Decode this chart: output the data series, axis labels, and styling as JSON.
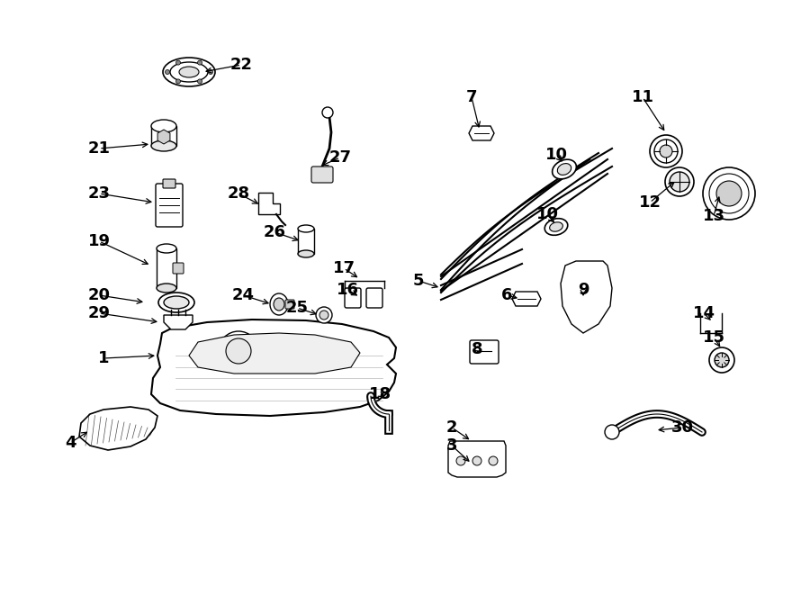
{
  "bg_color": "#ffffff",
  "line_color": "#000000",
  "labels": [
    [
      "1",
      115,
      398
    ],
    [
      "2",
      502,
      495
    ],
    [
      "3",
      502,
      515
    ],
    [
      "4",
      88,
      498
    ],
    [
      "5",
      468,
      310
    ],
    [
      "6",
      576,
      330
    ],
    [
      "7",
      524,
      105
    ],
    [
      "8",
      537,
      385
    ],
    [
      "9",
      651,
      330
    ],
    [
      "10",
      621,
      178
    ],
    [
      "10",
      612,
      240
    ],
    [
      "11",
      714,
      105
    ],
    [
      "12",
      727,
      230
    ],
    [
      "13",
      793,
      242
    ],
    [
      "14",
      790,
      348
    ],
    [
      "15",
      800,
      378
    ],
    [
      "16",
      393,
      325
    ],
    [
      "17",
      388,
      298
    ],
    [
      "18",
      420,
      440
    ],
    [
      "19",
      110,
      268
    ],
    [
      "20",
      110,
      328
    ],
    [
      "21",
      110,
      168
    ],
    [
      "22",
      268,
      75
    ],
    [
      "23",
      110,
      218
    ],
    [
      "24",
      270,
      328
    ],
    [
      "25",
      330,
      340
    ],
    [
      "26",
      310,
      258
    ],
    [
      "27",
      378,
      178
    ],
    [
      "28",
      268,
      218
    ],
    [
      "29",
      110,
      348
    ],
    [
      "30",
      762,
      478
    ]
  ]
}
